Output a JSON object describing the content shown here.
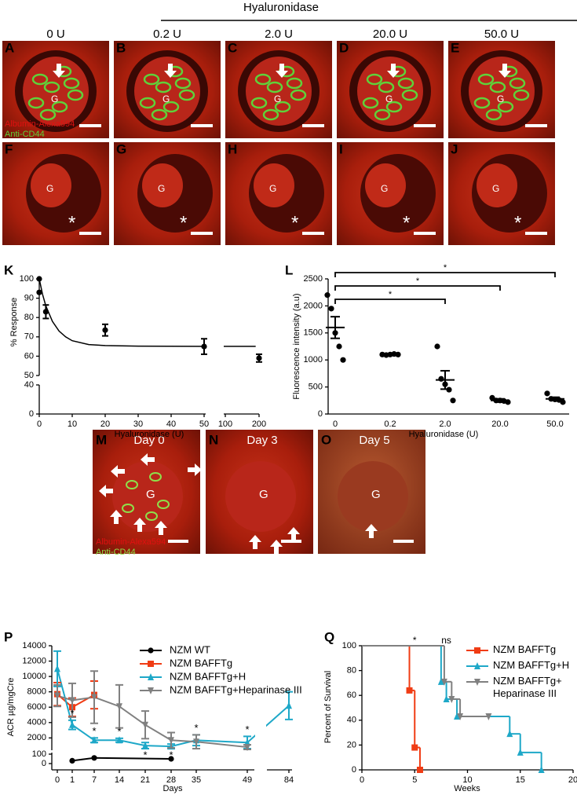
{
  "header": {
    "title": "Hyaluronidase",
    "doses": [
      "0 U",
      "0.2 U",
      "2.0 U",
      "20.0 U",
      "50.0 U"
    ]
  },
  "micrographs": {
    "top_letters": [
      "A",
      "B",
      "C",
      "D",
      "E"
    ],
    "bottom_letters": [
      "F",
      "G",
      "H",
      "I",
      "J"
    ],
    "glomerulus": "G",
    "asterisk": "*",
    "stains": [
      "Albumin-Alexa594",
      "Anti-CD44"
    ]
  },
  "time_course": {
    "letters": [
      "M",
      "N",
      "O"
    ],
    "days": [
      "Day 0",
      "Day 3",
      "Day 5"
    ]
  },
  "chart_data": [
    {
      "type": "scatter",
      "panel": "K",
      "ylabel": "% Response",
      "xlabel": "Hyaluronidase (U)",
      "color": "#000000",
      "x": [
        0,
        0,
        2,
        20,
        50,
        200
      ],
      "values": [
        100,
        93,
        83,
        73.5,
        65,
        59
      ],
      "errors": [
        null,
        null,
        3.5,
        3,
        4,
        2
      ],
      "fit_x": [
        0,
        1,
        2,
        4,
        6,
        8,
        10,
        15,
        20,
        30,
        50,
        100,
        190
      ],
      "fit_values": [
        100,
        92,
        86,
        78,
        73,
        70,
        68,
        66,
        65.5,
        65.2,
        65.1,
        65.1,
        65.1
      ],
      "xlim": [
        0,
        200
      ],
      "xticks": [
        0,
        10,
        20,
        30,
        40,
        50,
        100,
        200
      ],
      "xbreak": [
        50,
        100
      ],
      "ylim": [
        0,
        100
      ],
      "yticks": [
        0,
        40,
        50,
        60,
        70,
        80,
        90,
        100
      ],
      "ybreak": [
        40,
        50
      ]
    },
    {
      "type": "dot",
      "panel": "L",
      "ylabel": "Fluorescence intensity (a.u)",
      "xlabel": "Hyaluronidase (U)",
      "color": "#000000",
      "categories": [
        "0",
        "0.2",
        "2.0",
        "20.0",
        "50.0"
      ],
      "points": [
        [
          2200,
          1950,
          1500,
          1250,
          1000
        ],
        [
          1100,
          1090,
          1100,
          1110,
          1100
        ],
        [
          1250,
          650,
          550,
          450,
          250
        ],
        [
          300,
          250,
          250,
          240,
          220
        ],
        [
          380,
          280,
          270,
          260,
          220
        ]
      ],
      "means": [
        1600,
        1100,
        630,
        250,
        280
      ],
      "errors": [
        200,
        5,
        170,
        30,
        30
      ],
      "comparisons": [
        {
          "from": 0,
          "to": 2,
          "label": "*"
        },
        {
          "from": 0,
          "to": 3,
          "label": "*"
        },
        {
          "from": 0,
          "to": 4,
          "label": "*"
        }
      ],
      "ylim": [
        0,
        2500
      ],
      "yticks": [
        0,
        500,
        1000,
        1500,
        2000,
        2500
      ]
    },
    {
      "type": "line",
      "panel": "P",
      "ylabel": "ACR µg/mgCre",
      "xlabel": "Days",
      "xlim": [
        0,
        84
      ],
      "xticks": [
        0,
        1,
        7,
        14,
        21,
        28,
        35,
        49,
        84
      ],
      "xbreak": [
        49,
        84
      ],
      "ylim": [
        0,
        14000
      ],
      "yticks": [
        0,
        100,
        2000,
        4000,
        6000,
        8000,
        10000,
        12000,
        14000
      ],
      "ybreak": [
        100,
        500
      ],
      "series": [
        {
          "name": "NZM WT",
          "color": "#000000",
          "marker": "circle",
          "x": [
            1,
            7,
            28
          ],
          "values": [
            30,
            60,
            50
          ],
          "errors": [
            null,
            null,
            null
          ]
        },
        {
          "name": "NZM BAFFTg",
          "color": "#f03c14",
          "marker": "square",
          "x": [
            0,
            1,
            7
          ],
          "values": [
            7700,
            6000,
            7600
          ],
          "errors": [
            1500,
            1200,
            1800
          ]
        },
        {
          "name": "NZM BAFFTg+H",
          "color": "#1ea8c8",
          "marker": "triangle",
          "x": [
            0,
            1,
            7,
            14,
            21,
            28,
            35,
            49,
            84
          ],
          "values": [
            11000,
            3700,
            1700,
            1700,
            1000,
            900,
            1700,
            1400,
            6200
          ],
          "errors": [
            2300,
            600,
            300,
            250,
            400,
            300,
            700,
            800,
            1800
          ]
        },
        {
          "name": "NZM BAFFTg+Heparinase III",
          "color": "#808080",
          "marker": "triangle-down",
          "x": [
            0,
            1,
            7,
            14,
            21,
            28,
            35,
            49
          ],
          "values": [
            7500,
            6900,
            7300,
            6100,
            3700,
            1700,
            1500,
            800
          ],
          "errors": [
            1400,
            2200,
            3400,
            2800,
            1800,
            1000,
            900,
            300
          ]
        }
      ],
      "annotations": [
        {
          "x": 1,
          "label": "*",
          "position": "above"
        },
        {
          "x": 7,
          "label": "*",
          "position": "above"
        },
        {
          "x": 14,
          "label": "*",
          "position": "above"
        },
        {
          "x": 21,
          "label": "*",
          "position": "below"
        },
        {
          "x": 28,
          "label": "*",
          "position": "below"
        },
        {
          "x": 35,
          "label": "*",
          "position": "above"
        },
        {
          "x": 49,
          "label": "*",
          "position": "above"
        }
      ]
    },
    {
      "type": "survival",
      "panel": "Q",
      "ylabel": "Percent of Survival",
      "xlabel": "Weeks",
      "xlim": [
        0,
        20
      ],
      "xticks": [
        0,
        5,
        10,
        15,
        20
      ],
      "ylim": [
        0,
        100
      ],
      "yticks": [
        0,
        20,
        40,
        60,
        80,
        100
      ],
      "series": [
        {
          "name": "NZM BAFFTg",
          "color": "#f03c14",
          "marker": "square",
          "x": [
            0,
            4.5,
            5,
            5.5
          ],
          "values": [
            100,
            64,
            18,
            0
          ]
        },
        {
          "name": "NZM BAFFTg+H",
          "color": "#1ea8c8",
          "marker": "triangle",
          "x": [
            0,
            7.5,
            8,
            9,
            14,
            15,
            17
          ],
          "values": [
            100,
            71,
            57,
            43,
            29,
            14,
            0
          ]
        },
        {
          "name": "NZM BAFFTg+ Heparinase III",
          "color": "#808080",
          "marker": "triangle-down",
          "x": [
            0,
            7.8,
            8.5,
            9.3,
            12
          ],
          "values": [
            100,
            71,
            57,
            43,
            43
          ]
        }
      ],
      "annotations": [
        {
          "x": 5,
          "label": "*"
        },
        {
          "x": 8,
          "label": "ns"
        }
      ]
    }
  ]
}
